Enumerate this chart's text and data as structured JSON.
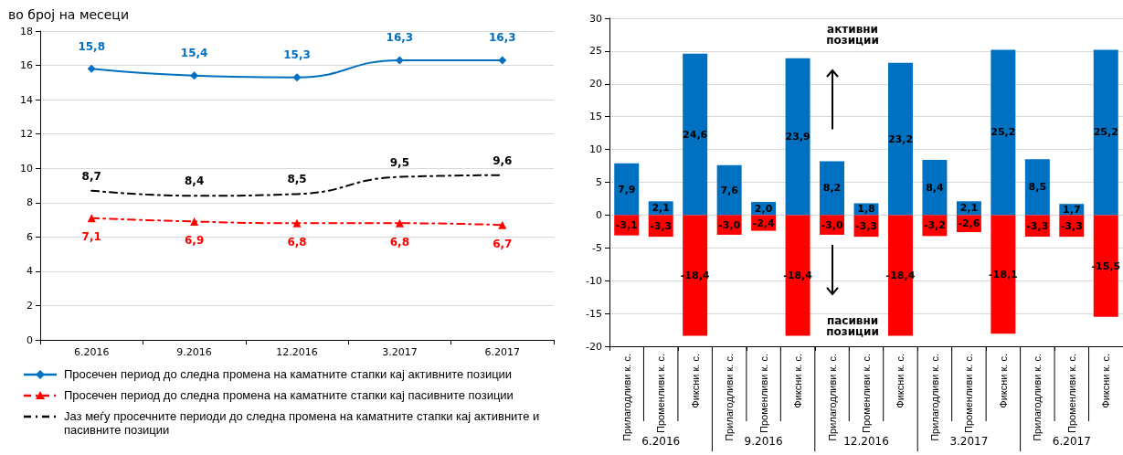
{
  "chart_data": [
    {
      "type": "line",
      "title": "во број на месеци",
      "categories": [
        "6.2016",
        "9.2016",
        "12.2016",
        "3.2017",
        "6.2017"
      ],
      "series": [
        {
          "name": "Просечен период до следна промена на каматните стапки кај активните позиции",
          "color": "#0070c0",
          "values": [
            15.8,
            15.4,
            15.3,
            16.3,
            16.3
          ],
          "value_labels": [
            "15,8",
            "15,4",
            "15,3",
            "16,3",
            "16,3"
          ],
          "marker": "diamond",
          "line_style": "solid"
        },
        {
          "name": "Просечен период до следна промена на каматните стапки кај пасивните позиции",
          "color": "#ff0000",
          "values": [
            7.1,
            6.9,
            6.8,
            6.8,
            6.7
          ],
          "value_labels": [
            "7,1",
            "6,9",
            "6,8",
            "6,8",
            "6,7"
          ],
          "marker": "triangle",
          "line_style": "dashed"
        },
        {
          "name": "Јаз меѓу просечните периоди до следна промена на каматните стапки кај активните и пасивните позиции",
          "color": "#000000",
          "values": [
            8.7,
            8.4,
            8.5,
            9.5,
            9.6
          ],
          "value_labels": [
            "8,7",
            "8,4",
            "8,5",
            "9,5",
            "9,6"
          ],
          "marker": "none",
          "line_style": "dashed"
        }
      ],
      "ylim": [
        0,
        18
      ],
      "yticks": [
        0,
        2,
        4,
        6,
        8,
        10,
        12,
        14,
        16,
        18
      ],
      "grid": "y",
      "legend": "bottom"
    },
    {
      "type": "bar",
      "stacked": true,
      "categories": [
        "Прилагодливи к. с.",
        "Променливи к. с.",
        "Фиксни к. с.",
        "Прилагодливи к. с.",
        "Променливи к. с.",
        "Фиксни к. с.",
        "Прилагодливи к. с.",
        "Променливи к. с.",
        "Фиксни к. с.",
        "Прилагодливи к. с.",
        "Променливи к. с.",
        "Фиксни к. с.",
        "Прилагодливи к. с.",
        "Променливи к. с.",
        "Фиксни к. с."
      ],
      "series": [
        {
          "color": "#0070c0",
          "values": [
            7.9,
            2.1,
            24.6,
            7.6,
            2.0,
            23.9,
            8.2,
            1.8,
            23.2,
            8.4,
            2.1,
            25.2,
            8.5,
            1.7,
            25.2
          ],
          "value_labels": [
            "7,9",
            "2,1",
            "24,6",
            "7,6",
            "2,0",
            "23,9",
            "8,2",
            "1,8",
            "23,2",
            "8,4",
            "2,1",
            "25,2",
            "8,5",
            "1,7",
            "25,2"
          ]
        },
        {
          "color": "#ff0000",
          "values": [
            -3.1,
            -3.3,
            -18.4,
            -3.0,
            -2.4,
            -18.4,
            -3.0,
            -3.3,
            -18.4,
            -3.2,
            -2.6,
            -18.1,
            -3.3,
            -3.3,
            -15.5
          ],
          "value_labels": [
            "-3,1",
            "-3,3",
            "-18,4",
            "-3,0",
            "-2,4",
            "-18,4",
            "-3,0",
            "-3,3",
            "-18,4",
            "-3,2",
            "-2,6",
            "-18,1",
            "-3,3",
            "-3,3",
            "-15,5"
          ]
        }
      ],
      "annotations": [
        "6.2016",
        "9.2016",
        "12.2016",
        "3.2017",
        "6.2017",
        "активни позиции",
        "пасивни позиции"
      ],
      "ylim": [
        -20,
        30
      ],
      "yticks": [
        -20,
        -15,
        -10,
        -5,
        0,
        5,
        10,
        15,
        20,
        25,
        30
      ],
      "grid": "y"
    }
  ]
}
